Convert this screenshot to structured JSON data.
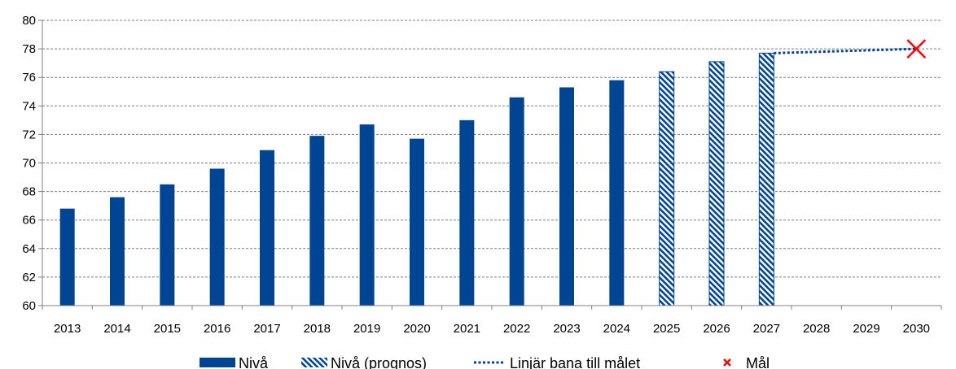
{
  "chart_data": {
    "type": "bar",
    "categories": [
      "2013",
      "2014",
      "2015",
      "2016",
      "2017",
      "2018",
      "2019",
      "2020",
      "2021",
      "2022",
      "2023",
      "2024",
      "2025",
      "2026",
      "2027",
      "2028",
      "2029",
      "2030"
    ],
    "series": [
      {
        "name": "Nivå",
        "values": [
          66.8,
          67.6,
          68.5,
          69.6,
          70.9,
          71.9,
          72.7,
          71.7,
          73.0,
          74.6,
          75.3,
          75.8,
          null,
          null,
          null,
          null,
          null,
          null
        ],
        "color": "#004494",
        "style": "solid"
      },
      {
        "name": "Nivå (prognos)",
        "values": [
          null,
          null,
          null,
          null,
          null,
          null,
          null,
          null,
          null,
          null,
          null,
          null,
          76.4,
          77.1,
          77.7,
          null,
          null,
          null
        ],
        "color": "#004494",
        "style": "hatched"
      },
      {
        "name": "Linjär bana till målet",
        "type": "line",
        "points": [
          [
            "2027",
            77.7
          ],
          [
            "2030",
            78.0
          ]
        ],
        "color": "#004494",
        "style": "dotted"
      },
      {
        "name": "Mål",
        "type": "marker",
        "points": [
          [
            "2030",
            78.0
          ]
        ],
        "color": "#ff0000",
        "marker": "x"
      }
    ],
    "ylim": [
      60,
      80
    ],
    "yticks": [
      60,
      62,
      64,
      66,
      68,
      70,
      72,
      74,
      76,
      78,
      80
    ],
    "grid": true,
    "legend_position": "bottom"
  }
}
